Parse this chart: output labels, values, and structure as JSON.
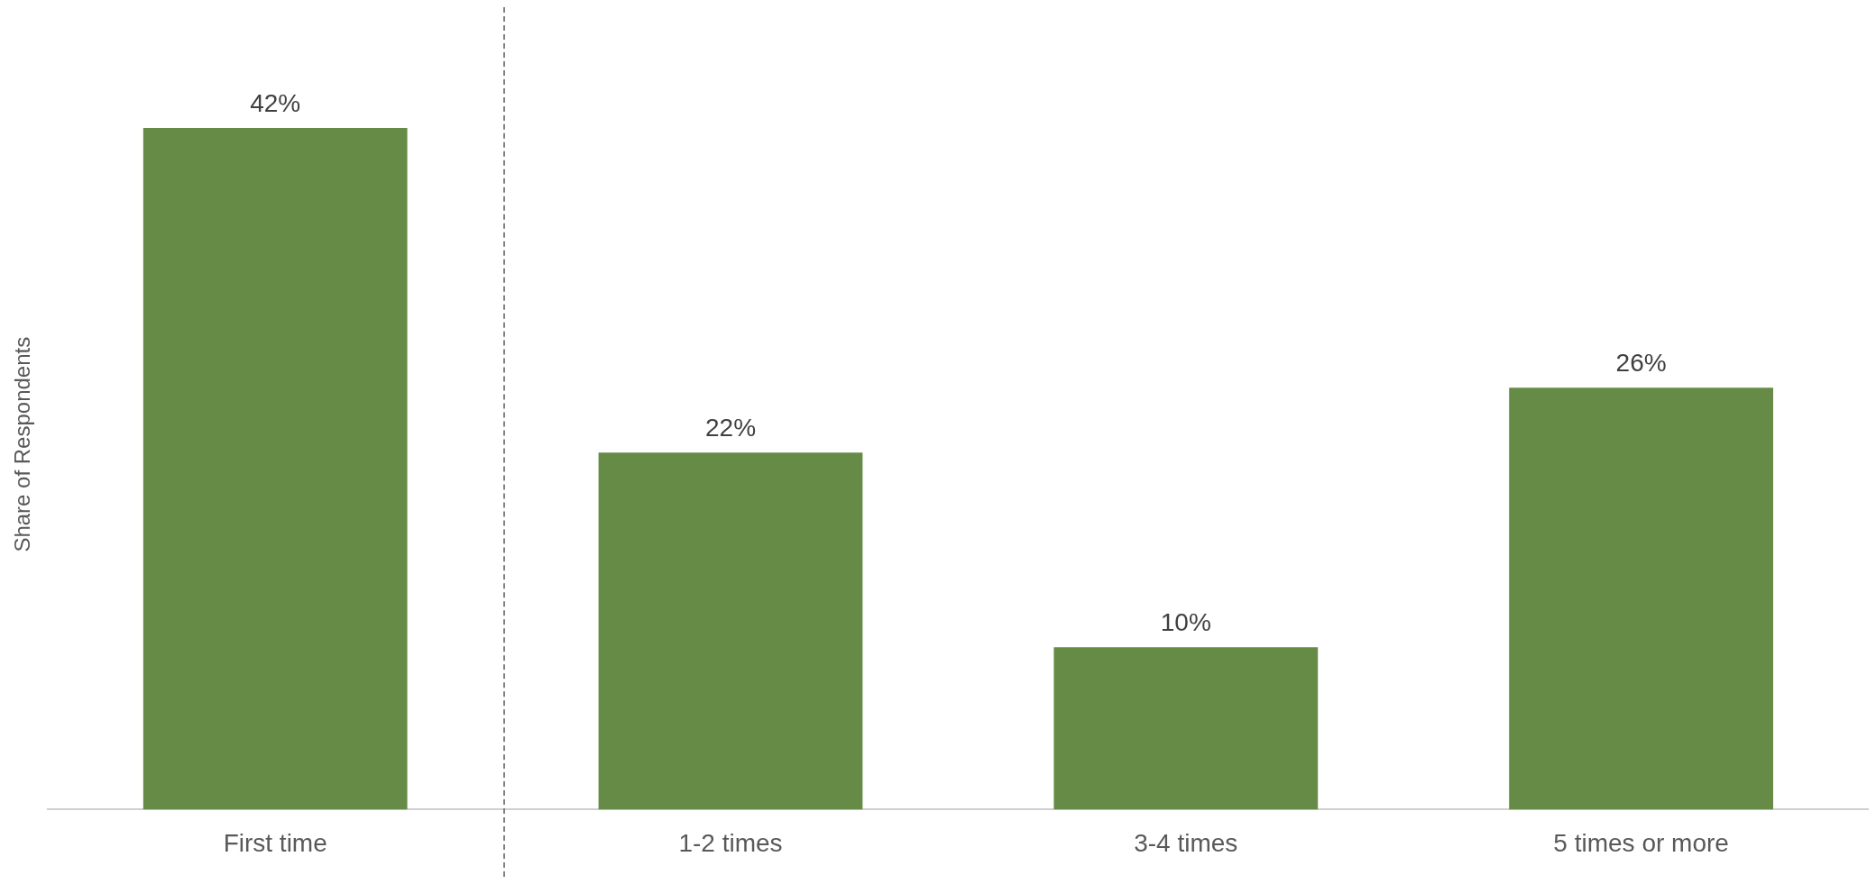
{
  "chart_data": {
    "type": "bar",
    "ylabel": "Share of Respondents",
    "categories": [
      "First time",
      "1-2 times",
      "3-4 times",
      "5 times or more"
    ],
    "values": [
      42,
      22,
      10,
      26
    ],
    "value_labels": [
      "42%",
      "22%",
      "10%",
      "26%"
    ],
    "color": "#668b46"
  }
}
